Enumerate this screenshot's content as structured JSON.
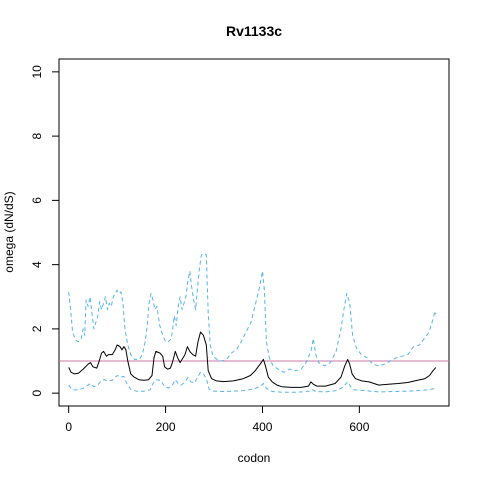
{
  "chart_data": {
    "type": "line",
    "title": "Rv1133c",
    "xlabel": "codon",
    "ylabel": "omega (dN/dS)",
    "xlim": [
      -20,
      785
    ],
    "ylim": [
      -0.4,
      10.4
    ],
    "x_ticks": [
      0,
      200,
      400,
      600
    ],
    "y_ticks": [
      0,
      2,
      4,
      6,
      8,
      10
    ],
    "grid": false,
    "reference_line": {
      "y": 1,
      "color": "#cc79a7"
    },
    "series": [
      {
        "style": "solid",
        "color": "#000000",
        "points": [
          [
            0,
            0.8
          ],
          [
            5,
            0.65
          ],
          [
            12,
            0.6
          ],
          [
            20,
            0.62
          ],
          [
            30,
            0.75
          ],
          [
            40,
            0.9
          ],
          [
            45,
            0.95
          ],
          [
            50,
            0.82
          ],
          [
            58,
            0.78
          ],
          [
            62,
            0.95
          ],
          [
            68,
            1.25
          ],
          [
            72,
            1.3
          ],
          [
            78,
            1.15
          ],
          [
            82,
            1.2
          ],
          [
            90,
            1.2
          ],
          [
            96,
            1.35
          ],
          [
            100,
            1.5
          ],
          [
            106,
            1.45
          ],
          [
            110,
            1.35
          ],
          [
            114,
            1.45
          ],
          [
            118,
            1.35
          ],
          [
            122,
            1.0
          ],
          [
            128,
            0.6
          ],
          [
            135,
            0.5
          ],
          [
            145,
            0.42
          ],
          [
            155,
            0.4
          ],
          [
            165,
            0.42
          ],
          [
            172,
            0.55
          ],
          [
            176,
            1.1
          ],
          [
            180,
            1.3
          ],
          [
            188,
            1.25
          ],
          [
            194,
            1.15
          ],
          [
            198,
            0.82
          ],
          [
            204,
            0.75
          ],
          [
            210,
            0.78
          ],
          [
            214,
            0.95
          ],
          [
            220,
            1.3
          ],
          [
            225,
            1.1
          ],
          [
            230,
            0.95
          ],
          [
            240,
            1.2
          ],
          [
            245,
            1.45
          ],
          [
            250,
            1.3
          ],
          [
            256,
            1.2
          ],
          [
            262,
            1.15
          ],
          [
            267,
            1.6
          ],
          [
            272,
            1.9
          ],
          [
            278,
            1.8
          ],
          [
            284,
            1.5
          ],
          [
            288,
            0.7
          ],
          [
            295,
            0.45
          ],
          [
            305,
            0.38
          ],
          [
            320,
            0.36
          ],
          [
            340,
            0.38
          ],
          [
            360,
            0.45
          ],
          [
            375,
            0.55
          ],
          [
            385,
            0.7
          ],
          [
            395,
            0.9
          ],
          [
            402,
            1.05
          ],
          [
            406,
            0.85
          ],
          [
            412,
            0.5
          ],
          [
            420,
            0.35
          ],
          [
            430,
            0.25
          ],
          [
            440,
            0.2
          ],
          [
            460,
            0.18
          ],
          [
            480,
            0.18
          ],
          [
            495,
            0.22
          ],
          [
            500,
            0.35
          ],
          [
            505,
            0.28
          ],
          [
            512,
            0.22
          ],
          [
            530,
            0.22
          ],
          [
            550,
            0.3
          ],
          [
            562,
            0.5
          ],
          [
            570,
            0.85
          ],
          [
            576,
            1.05
          ],
          [
            580,
            0.9
          ],
          [
            585,
            0.6
          ],
          [
            592,
            0.45
          ],
          [
            605,
            0.38
          ],
          [
            620,
            0.35
          ],
          [
            640,
            0.25
          ],
          [
            660,
            0.28
          ],
          [
            680,
            0.3
          ],
          [
            700,
            0.33
          ],
          [
            720,
            0.4
          ],
          [
            735,
            0.45
          ],
          [
            745,
            0.55
          ],
          [
            752,
            0.7
          ],
          [
            758,
            0.8
          ]
        ]
      },
      {
        "style": "dashed",
        "color": "#56b4e9",
        "points": [
          [
            0,
            3.15
          ],
          [
            4,
            2.6
          ],
          [
            8,
            1.9
          ],
          [
            14,
            1.65
          ],
          [
            20,
            1.6
          ],
          [
            26,
            1.7
          ],
          [
            30,
            2.0
          ],
          [
            33,
            1.8
          ],
          [
            36,
            2.9
          ],
          [
            40,
            2.7
          ],
          [
            44,
            3.0
          ],
          [
            48,
            2.5
          ],
          [
            52,
            2.0
          ],
          [
            56,
            2.2
          ],
          [
            60,
            2.4
          ],
          [
            64,
            2.85
          ],
          [
            68,
            2.6
          ],
          [
            72,
            2.8
          ],
          [
            76,
            3.0
          ],
          [
            80,
            2.6
          ],
          [
            84,
            2.8
          ],
          [
            88,
            2.7
          ],
          [
            92,
            3.0
          ],
          [
            96,
            3.1
          ],
          [
            100,
            3.2
          ],
          [
            104,
            3.1
          ],
          [
            108,
            3.15
          ],
          [
            112,
            2.8
          ],
          [
            116,
            2.0
          ],
          [
            122,
            1.5
          ],
          [
            128,
            1.2
          ],
          [
            136,
            1.05
          ],
          [
            146,
            1.05
          ],
          [
            152,
            1.2
          ],
          [
            158,
            1.6
          ],
          [
            162,
            2.1
          ],
          [
            166,
            2.8
          ],
          [
            170,
            3.1
          ],
          [
            174,
            2.9
          ],
          [
            178,
            2.6
          ],
          [
            182,
            2.7
          ],
          [
            188,
            2.1
          ],
          [
            194,
            1.8
          ],
          [
            200,
            1.6
          ],
          [
            206,
            1.6
          ],
          [
            212,
            1.7
          ],
          [
            218,
            2.4
          ],
          [
            222,
            2.1
          ],
          [
            226,
            2.7
          ],
          [
            230,
            3.0
          ],
          [
            234,
            2.6
          ],
          [
            238,
            2.8
          ],
          [
            242,
            3.0
          ],
          [
            246,
            3.5
          ],
          [
            250,
            3.8
          ],
          [
            254,
            3.3
          ],
          [
            258,
            2.9
          ],
          [
            262,
            2.6
          ],
          [
            266,
            3.3
          ],
          [
            270,
            3.9
          ],
          [
            274,
            4.3
          ],
          [
            278,
            4.35
          ],
          [
            284,
            4.3
          ],
          [
            288,
            2.5
          ],
          [
            292,
            1.5
          ],
          [
            298,
            1.15
          ],
          [
            306,
            1.05
          ],
          [
            316,
            1.0
          ],
          [
            326,
            1.05
          ],
          [
            336,
            1.25
          ],
          [
            346,
            1.35
          ],
          [
            356,
            1.6
          ],
          [
            366,
            1.9
          ],
          [
            376,
            2.2
          ],
          [
            386,
            2.8
          ],
          [
            394,
            3.3
          ],
          [
            400,
            3.8
          ],
          [
            404,
            3.2
          ],
          [
            408,
            1.6
          ],
          [
            414,
            1.1
          ],
          [
            422,
            0.85
          ],
          [
            432,
            0.75
          ],
          [
            444,
            0.65
          ],
          [
            456,
            0.75
          ],
          [
            468,
            0.7
          ],
          [
            480,
            0.75
          ],
          [
            490,
            0.95
          ],
          [
            500,
            1.3
          ],
          [
            505,
            1.7
          ],
          [
            510,
            1.2
          ],
          [
            516,
            0.95
          ],
          [
            528,
            0.85
          ],
          [
            540,
            0.95
          ],
          [
            552,
            1.3
          ],
          [
            562,
            2.0
          ],
          [
            568,
            2.6
          ],
          [
            574,
            3.1
          ],
          [
            580,
            2.8
          ],
          [
            586,
            1.8
          ],
          [
            594,
            1.4
          ],
          [
            604,
            1.2
          ],
          [
            616,
            1.1
          ],
          [
            628,
            0.9
          ],
          [
            640,
            0.85
          ],
          [
            652,
            0.9
          ],
          [
            664,
            1.0
          ],
          [
            676,
            1.1
          ],
          [
            688,
            1.15
          ],
          [
            700,
            1.2
          ],
          [
            712,
            1.45
          ],
          [
            724,
            1.5
          ],
          [
            734,
            1.7
          ],
          [
            744,
            1.9
          ],
          [
            752,
            2.3
          ],
          [
            756,
            2.55
          ],
          [
            758,
            2.45
          ]
        ]
      },
      {
        "style": "dashed",
        "color": "#56b4e9",
        "points": [
          [
            0,
            0.25
          ],
          [
            5,
            0.15
          ],
          [
            10,
            0.1
          ],
          [
            20,
            0.1
          ],
          [
            30,
            0.15
          ],
          [
            40,
            0.25
          ],
          [
            45,
            0.3
          ],
          [
            52,
            0.2
          ],
          [
            60,
            0.25
          ],
          [
            68,
            0.4
          ],
          [
            74,
            0.42
          ],
          [
            80,
            0.38
          ],
          [
            90,
            0.4
          ],
          [
            100,
            0.55
          ],
          [
            108,
            0.5
          ],
          [
            114,
            0.52
          ],
          [
            120,
            0.3
          ],
          [
            128,
            0.12
          ],
          [
            140,
            0.06
          ],
          [
            155,
            0.06
          ],
          [
            168,
            0.1
          ],
          [
            174,
            0.3
          ],
          [
            180,
            0.42
          ],
          [
            190,
            0.4
          ],
          [
            198,
            0.2
          ],
          [
            206,
            0.16
          ],
          [
            214,
            0.25
          ],
          [
            220,
            0.42
          ],
          [
            226,
            0.3
          ],
          [
            232,
            0.25
          ],
          [
            240,
            0.35
          ],
          [
            246,
            0.48
          ],
          [
            252,
            0.35
          ],
          [
            260,
            0.32
          ],
          [
            266,
            0.5
          ],
          [
            272,
            0.65
          ],
          [
            278,
            0.6
          ],
          [
            284,
            0.45
          ],
          [
            290,
            0.12
          ],
          [
            300,
            0.06
          ],
          [
            320,
            0.05
          ],
          [
            340,
            0.06
          ],
          [
            360,
            0.08
          ],
          [
            380,
            0.12
          ],
          [
            394,
            0.2
          ],
          [
            402,
            0.3
          ],
          [
            408,
            0.15
          ],
          [
            420,
            0.05
          ],
          [
            440,
            0.03
          ],
          [
            470,
            0.03
          ],
          [
            495,
            0.05
          ],
          [
            502,
            0.12
          ],
          [
            510,
            0.05
          ],
          [
            530,
            0.04
          ],
          [
            552,
            0.08
          ],
          [
            566,
            0.18
          ],
          [
            576,
            0.35
          ],
          [
            582,
            0.2
          ],
          [
            590,
            0.1
          ],
          [
            610,
            0.08
          ],
          [
            640,
            0.04
          ],
          [
            670,
            0.05
          ],
          [
            700,
            0.06
          ],
          [
            720,
            0.08
          ],
          [
            740,
            0.1
          ],
          [
            758,
            0.15
          ]
        ]
      }
    ]
  }
}
